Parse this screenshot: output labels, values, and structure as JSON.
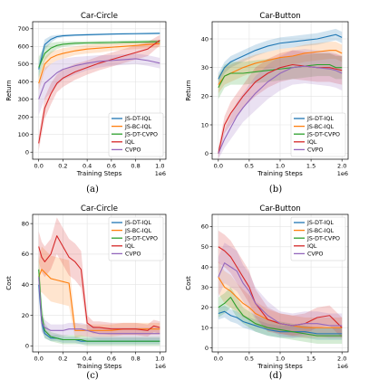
{
  "chart_data": [
    {
      "type": "line",
      "title": "Car-Circle",
      "xlabel": "Training Steps",
      "ylabel": "Return",
      "x_multiplier_label": "1e6",
      "caption": "(a)",
      "xlim": [
        -0.05,
        1.05
      ],
      "ylim": [
        -40,
        740
      ],
      "xticks": [
        0.0,
        0.2,
        0.4,
        0.6,
        0.8,
        1.0
      ],
      "xtick_labels": [
        "0.0",
        "0.2",
        "0.4",
        "0.6",
        "0.8",
        "1.0"
      ],
      "yticks": [
        0,
        100,
        200,
        300,
        400,
        500,
        600,
        700
      ],
      "ytick_labels": [
        "0",
        "100",
        "200",
        "300",
        "400",
        "500",
        "600",
        "700"
      ],
      "grid": true,
      "legend_position": "lower-right",
      "x": [
        0.0,
        0.05,
        0.1,
        0.15,
        0.2,
        0.3,
        0.4,
        0.5,
        0.6,
        0.7,
        0.8,
        0.9,
        1.0
      ],
      "series": [
        {
          "name": "JS-DT-IQL",
          "color": "#1f77b4",
          "values": [
            470,
            610,
            640,
            655,
            660,
            664,
            666,
            668,
            670,
            671,
            672,
            673,
            674
          ],
          "spread": [
            40,
            30,
            20,
            10,
            8,
            6,
            6,
            5,
            5,
            5,
            5,
            5,
            5
          ]
        },
        {
          "name": "JS-BC-IQL",
          "color": "#ff7f0e",
          "values": [
            390,
            500,
            535,
            550,
            560,
            575,
            585,
            590,
            595,
            600,
            605,
            610,
            615
          ],
          "spread": [
            40,
            40,
            35,
            30,
            30,
            25,
            25,
            25,
            20,
            20,
            20,
            20,
            20
          ]
        },
        {
          "name": "JS-DT-CVPO",
          "color": "#2ca02c",
          "values": [
            480,
            560,
            590,
            605,
            612,
            618,
            620,
            621,
            622,
            624,
            625,
            626,
            627
          ],
          "spread": [
            60,
            40,
            30,
            20,
            15,
            12,
            10,
            10,
            10,
            10,
            10,
            10,
            10
          ]
        },
        {
          "name": "IQL",
          "color": "#d62728",
          "values": [
            50,
            250,
            330,
            390,
            420,
            455,
            480,
            505,
            525,
            545,
            565,
            585,
            635
          ],
          "spread": [
            40,
            60,
            60,
            50,
            50,
            45,
            40,
            40,
            40,
            40,
            40,
            40,
            30
          ]
        },
        {
          "name": "CVPO",
          "color": "#9467bd",
          "values": [
            300,
            390,
            420,
            450,
            470,
            490,
            505,
            515,
            520,
            525,
            530,
            520,
            505
          ],
          "spread": [
            90,
            90,
            80,
            70,
            60,
            50,
            40,
            35,
            30,
            30,
            30,
            30,
            30
          ]
        }
      ]
    },
    {
      "type": "line",
      "title": "Car-Button",
      "xlabel": "Training Steps",
      "ylabel": "Return",
      "x_multiplier_label": "1e6",
      "caption": "(b)",
      "xlim": [
        -0.1,
        2.1
      ],
      "ylim": [
        -2,
        46
      ],
      "xticks": [
        0.0,
        0.5,
        1.0,
        1.5,
        2.0
      ],
      "xtick_labels": [
        "0.0",
        "0.5",
        "1.0",
        "1.5",
        "2.0"
      ],
      "yticks": [
        0,
        10,
        20,
        30,
        40
      ],
      "ytick_labels": [
        "0",
        "10",
        "20",
        "30",
        "40"
      ],
      "grid": true,
      "legend_position": "lower-right",
      "x": [
        0.0,
        0.1,
        0.2,
        0.3,
        0.4,
        0.6,
        0.8,
        1.0,
        1.2,
        1.4,
        1.6,
        1.8,
        1.9,
        2.0
      ],
      "series": [
        {
          "name": "JS-DT-IQL",
          "color": "#1f77b4",
          "values": [
            26,
            30,
            32,
            33,
            34,
            36,
            37.5,
            38.5,
            39,
            39.5,
            40,
            41,
            41.5,
            40.5
          ],
          "spread": [
            2,
            2,
            2,
            2,
            2,
            2,
            2,
            2,
            2,
            2,
            2,
            2,
            2,
            2
          ]
        },
        {
          "name": "JS-BC-IQL",
          "color": "#ff7f0e",
          "values": [
            24,
            27,
            28,
            29,
            30,
            31.5,
            32.5,
            33.5,
            34,
            35,
            35.5,
            36,
            36,
            35
          ],
          "spread": [
            3,
            3,
            3,
            3,
            3,
            3,
            3,
            3,
            3,
            3,
            3,
            3,
            3,
            3
          ]
        },
        {
          "name": "JS-DT-CVPO",
          "color": "#2ca02c",
          "values": [
            23,
            27,
            28,
            28,
            28,
            28.5,
            29,
            29.5,
            30,
            30.5,
            31,
            31,
            30,
            30
          ],
          "spread": [
            4,
            4,
            4,
            4,
            4,
            4,
            4,
            4,
            4,
            4,
            4,
            4,
            4,
            4
          ]
        },
        {
          "name": "IQL",
          "color": "#d62728",
          "values": [
            0,
            10,
            14,
            17,
            20,
            25,
            28,
            30,
            31,
            30.5,
            30,
            30,
            29.5,
            29
          ],
          "spread": [
            2,
            3,
            4,
            4,
            4,
            5,
            5,
            5,
            5,
            5,
            5,
            5,
            5,
            5
          ]
        },
        {
          "name": "CVPO",
          "color": "#9467bd",
          "values": [
            0,
            5,
            9,
            13,
            16,
            21,
            25,
            28,
            30,
            30.5,
            30,
            29.5,
            29,
            28
          ],
          "spread": [
            2,
            3,
            4,
            5,
            5,
            6,
            6,
            6,
            6,
            6,
            6,
            6,
            6,
            6
          ]
        }
      ]
    },
    {
      "type": "line",
      "title": "Car-Circle",
      "xlabel": "Training Steps",
      "ylabel": "Cost",
      "x_multiplier_label": "1e6",
      "caption": "(c)",
      "xlim": [
        -0.05,
        1.05
      ],
      "ylim": [
        -4,
        86
      ],
      "xticks": [
        0.0,
        0.2,
        0.4,
        0.6,
        0.8,
        1.0
      ],
      "xtick_labels": [
        "0.0",
        "0.2",
        "0.4",
        "0.6",
        "0.8",
        "1.0"
      ],
      "yticks": [
        0,
        20,
        40,
        60,
        80
      ],
      "ytick_labels": [
        "0",
        "20",
        "40",
        "60",
        "80"
      ],
      "grid": true,
      "legend_position": "upper-right",
      "x": [
        0.0,
        0.025,
        0.05,
        0.1,
        0.15,
        0.2,
        0.25,
        0.3,
        0.35,
        0.4,
        0.45,
        0.5,
        0.6,
        0.7,
        0.8,
        0.9,
        0.95,
        1.0
      ],
      "series": [
        {
          "name": "JS-DT-IQL",
          "color": "#1f77b4",
          "values": [
            40,
            15,
            8,
            5,
            5,
            4,
            4,
            4,
            3,
            3,
            3,
            3,
            3,
            3,
            3,
            3,
            3,
            3
          ],
          "spread": [
            8,
            5,
            3,
            2,
            2,
            2,
            2,
            2,
            2,
            2,
            2,
            2,
            2,
            2,
            2,
            2,
            2,
            2
          ]
        },
        {
          "name": "JS-BC-IQL",
          "color": "#ff7f0e",
          "values": [
            45,
            50,
            48,
            44,
            43,
            42,
            41,
            10,
            10,
            10,
            10,
            10,
            10,
            11,
            11,
            11,
            11,
            11
          ],
          "spread": [
            10,
            15,
            15,
            15,
            15,
            15,
            15,
            5,
            4,
            4,
            4,
            4,
            4,
            4,
            4,
            4,
            4,
            4
          ]
        },
        {
          "name": "JS-DT-CVPO",
          "color": "#2ca02c",
          "values": [
            50,
            20,
            10,
            6,
            5,
            4,
            4,
            4,
            4,
            3,
            3,
            3,
            3,
            3,
            3,
            3,
            3,
            3
          ],
          "spread": [
            10,
            8,
            5,
            3,
            3,
            3,
            3,
            3,
            3,
            3,
            3,
            3,
            3,
            3,
            3,
            3,
            3,
            3
          ]
        },
        {
          "name": "IQL",
          "color": "#d62728",
          "values": [
            65,
            58,
            55,
            60,
            72,
            65,
            58,
            55,
            50,
            15,
            12,
            12,
            11,
            11,
            11,
            10,
            13,
            12
          ],
          "spread": [
            10,
            10,
            10,
            10,
            12,
            12,
            12,
            12,
            12,
            5,
            4,
            4,
            4,
            4,
            4,
            4,
            4,
            4
          ]
        },
        {
          "name": "CVPO",
          "color": "#9467bd",
          "values": [
            45,
            15,
            12,
            10,
            10,
            10,
            11,
            11,
            11,
            10,
            9,
            8,
            8,
            8,
            8,
            8,
            8,
            8
          ],
          "spread": [
            10,
            6,
            5,
            4,
            4,
            4,
            4,
            4,
            4,
            4,
            4,
            4,
            4,
            4,
            4,
            4,
            4,
            4
          ]
        }
      ]
    },
    {
      "type": "line",
      "title": "Car-Button",
      "xlabel": "Training Steps",
      "ylabel": "Cost",
      "x_multiplier_label": "1e6",
      "caption": "(d)",
      "xlim": [
        -0.1,
        2.1
      ],
      "ylim": [
        -2,
        66
      ],
      "xticks": [
        0.0,
        0.5,
        1.0,
        1.5,
        2.0
      ],
      "xtick_labels": [
        "0.0",
        "0.5",
        "1.0",
        "1.5",
        "2.0"
      ],
      "yticks": [
        0,
        10,
        20,
        30,
        40,
        50,
        60
      ],
      "ytick_labels": [
        "0",
        "10",
        "20",
        "30",
        "40",
        "50",
        "60"
      ],
      "grid": true,
      "legend_position": "upper-right",
      "x": [
        0.0,
        0.1,
        0.2,
        0.3,
        0.4,
        0.5,
        0.6,
        0.8,
        1.0,
        1.2,
        1.4,
        1.6,
        1.8,
        2.0
      ],
      "series": [
        {
          "name": "JS-DT-IQL",
          "color": "#1f77b4",
          "values": [
            17,
            18,
            16,
            15,
            13,
            12,
            11,
            9,
            8,
            8,
            8,
            7,
            7,
            7
          ],
          "spread": [
            3,
            3,
            3,
            3,
            3,
            3,
            3,
            3,
            3,
            3,
            3,
            3,
            3,
            3
          ]
        },
        {
          "name": "JS-BC-IQL",
          "color": "#ff7f0e",
          "values": [
            35,
            30,
            28,
            25,
            22,
            20,
            17,
            14,
            12,
            11,
            10,
            10,
            10,
            10
          ],
          "spread": [
            8,
            8,
            8,
            7,
            7,
            6,
            6,
            5,
            5,
            5,
            5,
            5,
            5,
            5
          ]
        },
        {
          "name": "JS-DT-CVPO",
          "color": "#2ca02c",
          "values": [
            20,
            22,
            25,
            20,
            16,
            14,
            12,
            10,
            9,
            8,
            7,
            6,
            6,
            6
          ],
          "spread": [
            5,
            5,
            5,
            5,
            4,
            4,
            4,
            4,
            4,
            4,
            4,
            4,
            4,
            4
          ]
        },
        {
          "name": "IQL",
          "color": "#d62728",
          "values": [
            50,
            48,
            45,
            40,
            35,
            30,
            22,
            14,
            12,
            11,
            12,
            15,
            16,
            10
          ],
          "spread": [
            8,
            8,
            8,
            8,
            8,
            8,
            7,
            6,
            5,
            5,
            5,
            5,
            5,
            5
          ]
        },
        {
          "name": "CVPO",
          "color": "#9467bd",
          "values": [
            35,
            42,
            40,
            38,
            32,
            28,
            22,
            16,
            12,
            11,
            12,
            12,
            11,
            11
          ],
          "spread": [
            10,
            10,
            10,
            10,
            9,
            9,
            8,
            7,
            6,
            6,
            6,
            6,
            6,
            6
          ]
        }
      ]
    }
  ]
}
